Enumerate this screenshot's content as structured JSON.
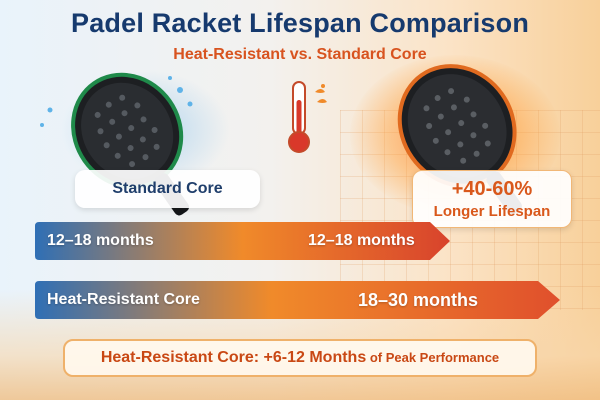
{
  "header": {
    "title": "Padel Racket Lifespan Comparison",
    "subtitle": "Heat-Resistant vs. Standard Core"
  },
  "labels": {
    "standard_core": "Standard Core",
    "lifespan_big": "+40-60%",
    "lifespan_small": "Longer Lifespan"
  },
  "bars": {
    "standard": {
      "left_text": "12–18 months",
      "right_text": "12–18 months"
    },
    "heat": {
      "left_text": "Heat-Resistant Core",
      "right_text": "18–30 months"
    }
  },
  "footer": {
    "main": "Heat-Resistant Core: +6-12 Months",
    "tail": " of Peak Performance"
  },
  "icons": {
    "left_racket": "padel-racket-icon",
    "right_racket": "padel-racket-icon",
    "thermometer": "thermometer-icon"
  },
  "colors": {
    "title": "#163a6e",
    "accent": "#d8531f",
    "bar_blue": "#2f6fb5",
    "bar_orange": "#f08a2a",
    "bar_red": "#d8432c"
  }
}
